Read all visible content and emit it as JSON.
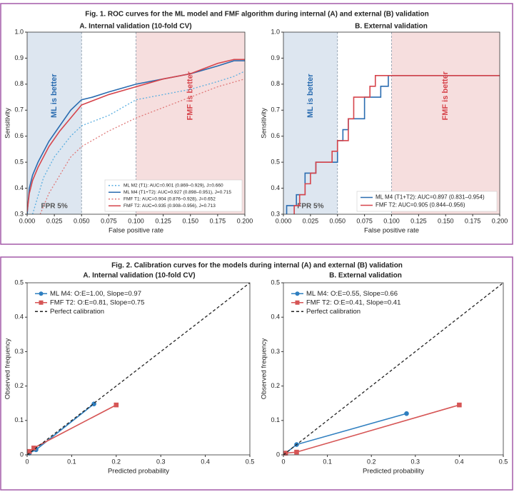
{
  "figures": [
    {
      "caption": "Fig. 1. ROC curves for the ML model and FMF algorithm during internal (A) and external (B) validation"
    },
    {
      "caption": "Fig. 2. Calibration curves for the models during internal (A) and external (B) validation"
    }
  ],
  "chart_data": [
    {
      "type": "line",
      "title": "A. Internal validation (10-fold CV)",
      "xlabel": "False positive rate",
      "ylabel": "Sensitivity",
      "xlim": [
        0,
        0.2
      ],
      "ylim": [
        0.3,
        1
      ],
      "xticks": [
        {
          "value": 0,
          "label": "0.000"
        },
        0.025,
        {
          "value": 0.05,
          "label": "0.050"
        },
        0.075,
        {
          "value": 0.1,
          "label": "0.100"
        },
        0.125,
        {
          "value": 0.15,
          "label": "0.150"
        },
        0.175,
        {
          "value": 0.2,
          "label": "0.200"
        }
      ],
      "yticks": [
        0.3,
        0.4,
        0.5,
        0.6,
        0.7,
        0.8,
        0.9,
        {
          "value": 1,
          "label": "1.0"
        }
      ],
      "legend": "lower right",
      "regions": [
        {
          "x": [
            0,
            0.05
          ],
          "color": "#dde6f0",
          "label": "ML is better",
          "label_color": "#2a6cb0"
        },
        {
          "x": [
            0.1,
            0.2
          ],
          "color": "#f6dede",
          "label": "FMF is better",
          "label_color": "#d6444b"
        }
      ],
      "annotations": [
        "FPR 5%"
      ],
      "series": [
        {
          "name": "ML M2 (T1): AUC=0.901 (0.869–0.929), J=0.660",
          "color": "#5aaee0",
          "style": "dotted",
          "x": [
            0.005,
            0.01,
            0.015,
            0.025,
            0.04,
            0.05,
            0.075,
            0.1,
            0.125,
            0.15,
            0.175,
            0.19,
            0.2
          ],
          "values": [
            0.3,
            0.37,
            0.44,
            0.52,
            0.6,
            0.64,
            0.68,
            0.74,
            0.76,
            0.78,
            0.81,
            0.83,
            0.85
          ]
        },
        {
          "name": "ML M4 (T1+T2): AUC=0.927 (0.898–0.951), J=0.715",
          "color": "#2a6cb0",
          "style": "solid",
          "x": [
            0,
            0.002,
            0.005,
            0.01,
            0.02,
            0.03,
            0.04,
            0.05,
            0.06,
            0.075,
            0.1,
            0.125,
            0.15,
            0.175,
            0.19,
            0.2
          ],
          "values": [
            0.3,
            0.4,
            0.45,
            0.5,
            0.58,
            0.64,
            0.7,
            0.74,
            0.75,
            0.77,
            0.8,
            0.82,
            0.84,
            0.87,
            0.89,
            0.89
          ]
        },
        {
          "name": "FMF T1: AUC=0.904 (0.876–0.928), J=0.652",
          "color": "#e07a7a",
          "style": "dotted",
          "x": [
            0.012,
            0.02,
            0.03,
            0.04,
            0.05,
            0.075,
            0.1,
            0.125,
            0.15,
            0.175,
            0.2
          ],
          "values": [
            0.3,
            0.38,
            0.45,
            0.52,
            0.56,
            0.62,
            0.67,
            0.71,
            0.75,
            0.79,
            0.82
          ]
        },
        {
          "name": "FMF T2: AUC=0.935 (0.908–0.956), J=0.713",
          "color": "#d6444b",
          "style": "solid",
          "x": [
            0,
            0.002,
            0.005,
            0.01,
            0.02,
            0.03,
            0.04,
            0.05,
            0.075,
            0.1,
            0.125,
            0.15,
            0.175,
            0.19,
            0.2
          ],
          "values": [
            0.31,
            0.38,
            0.43,
            0.48,
            0.56,
            0.62,
            0.67,
            0.72,
            0.76,
            0.79,
            0.82,
            0.84,
            0.88,
            0.895,
            0.895
          ]
        }
      ]
    },
    {
      "type": "line",
      "title": "B. External validation",
      "xlabel": "False positive rate",
      "ylabel": "Sensitivity",
      "xlim": [
        0,
        0.2
      ],
      "ylim": [
        0.3,
        1
      ],
      "xticks": [
        {
          "value": 0,
          "label": "0.000"
        },
        0.025,
        {
          "value": 0.05,
          "label": "0.050"
        },
        0.075,
        {
          "value": 0.1,
          "label": "0.100"
        },
        0.125,
        {
          "value": 0.15,
          "label": "0.150"
        },
        0.175,
        {
          "value": 0.2,
          "label": "0.200"
        }
      ],
      "yticks": [
        0.3,
        0.4,
        0.5,
        0.6,
        0.7,
        0.8,
        0.9,
        {
          "value": 1,
          "label": "1.0"
        }
      ],
      "legend": "lower right",
      "regions": [
        {
          "x": [
            0,
            0.05
          ],
          "color": "#dde6f0",
          "label": "ML is better",
          "label_color": "#2a6cb0"
        },
        {
          "x": [
            0.1,
            0.2
          ],
          "color": "#f6dede",
          "label": "FMF is better",
          "label_color": "#d6444b"
        }
      ],
      "annotations": [
        "FPR 5%"
      ],
      "series": [
        {
          "name": "ML M4 (T1+T2): AUC=0.897 (0.831–0.954)",
          "color": "#2a6cb0",
          "style": "solid",
          "x": [
            0.003,
            0.003,
            0.012,
            0.012,
            0.02,
            0.02,
            0.03,
            0.03,
            0.05,
            0.05,
            0.055,
            0.055,
            0.06,
            0.06,
            0.075,
            0.075,
            0.09,
            0.09,
            0.097,
            0.097,
            0.2
          ],
          "values": [
            0.3,
            0.333,
            0.333,
            0.375,
            0.375,
            0.458,
            0.458,
            0.5,
            0.5,
            0.583,
            0.583,
            0.625,
            0.625,
            0.667,
            0.667,
            0.75,
            0.75,
            0.792,
            0.792,
            0.833,
            0.833
          ]
        },
        {
          "name": "FMF T2: AUC=0.905 (0.844–0.956)",
          "color": "#d6444b",
          "style": "solid",
          "x": [
            0.01,
            0.01,
            0.015,
            0.015,
            0.02,
            0.02,
            0.025,
            0.025,
            0.03,
            0.03,
            0.045,
            0.045,
            0.05,
            0.05,
            0.06,
            0.06,
            0.065,
            0.065,
            0.08,
            0.08,
            0.085,
            0.085,
            0.2
          ],
          "values": [
            0.3,
            0.333,
            0.333,
            0.375,
            0.375,
            0.417,
            0.417,
            0.458,
            0.458,
            0.5,
            0.5,
            0.542,
            0.542,
            0.583,
            0.583,
            0.667,
            0.667,
            0.75,
            0.75,
            0.792,
            0.792,
            0.833,
            0.833
          ]
        }
      ]
    },
    {
      "type": "line",
      "title": "A. Internal validation (10-fold CV)",
      "xlabel": "Predicted probability",
      "ylabel": "Observed frequency",
      "xlim": [
        0,
        0.5
      ],
      "ylim": [
        0,
        0.5
      ],
      "xticks": [
        0,
        0.1,
        0.2,
        0.3,
        0.4,
        0.5
      ],
      "yticks": [
        0,
        0.1,
        0.2,
        0.3,
        0.4,
        0.5
      ],
      "legend": "upper left",
      "series": [
        {
          "name": "ML M4: O:E=1.00, Slope=0.97",
          "color": "#2f7fc0",
          "style": "solid",
          "marker": "circle",
          "x": [
            0.005,
            0.02,
            0.15
          ],
          "values": [
            0.005,
            0.015,
            0.148
          ]
        },
        {
          "name": "FMF T2: O:E=0.81, Slope=0.75",
          "color": "#d65555",
          "style": "solid",
          "marker": "square",
          "x": [
            0.005,
            0.015,
            0.2
          ],
          "values": [
            0.01,
            0.02,
            0.145
          ]
        },
        {
          "name": "Perfect calibration",
          "color": "#222222",
          "style": "dashed",
          "x": [
            0,
            0.5
          ],
          "values": [
            0,
            0.5
          ]
        }
      ]
    },
    {
      "type": "line",
      "title": "B. External validation",
      "xlabel": "Predicted probability",
      "ylabel": "Observed frequency",
      "xlim": [
        0,
        0.5
      ],
      "ylim": [
        0,
        0.5
      ],
      "xticks": [
        0,
        0.1,
        0.2,
        0.3,
        0.4,
        0.5
      ],
      "yticks": [
        0,
        0.1,
        0.2,
        0.3,
        0.4,
        0.5
      ],
      "legend": "upper left",
      "series": [
        {
          "name": "ML M4: O:E=0.55, Slope=0.66",
          "color": "#2f7fc0",
          "style": "solid",
          "marker": "circle",
          "x": [
            0.005,
            0.03,
            0.28
          ],
          "values": [
            0.005,
            0.03,
            0.12
          ]
        },
        {
          "name": "FMF T2: O:E=0.41, Slope=0.41",
          "color": "#d65555",
          "style": "solid",
          "marker": "square",
          "x": [
            0.005,
            0.03,
            0.4
          ],
          "values": [
            0.005,
            0.008,
            0.145
          ]
        },
        {
          "name": "Perfect calibration",
          "color": "#222222",
          "style": "dashed",
          "x": [
            0,
            0.5
          ],
          "values": [
            0,
            0.5
          ]
        }
      ]
    }
  ]
}
